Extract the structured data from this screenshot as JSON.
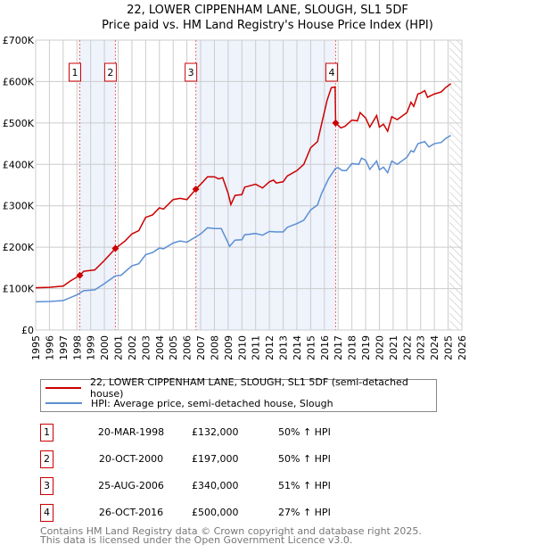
{
  "title": "22, LOWER CIPPENHAM LANE, SLOUGH, SL1 5DF",
  "subtitle": "Price paid vs. HM Land Registry's House Price Index (HPI)",
  "colors": {
    "property": "#cc0000",
    "hpi": "#5b8fd4",
    "shade": "#eef3fc"
  },
  "legend": [
    "22, LOWER CIPPENHAM LANE, SLOUGH, SL1 5DF (semi-detached house)",
    "HPI: Average price, semi-detached house, Slough"
  ],
  "sales": [
    {
      "num": "1",
      "date": "20-MAR-1998",
      "price": "£132,000",
      "hpi": "50% ↑ HPI"
    },
    {
      "num": "2",
      "date": "20-OCT-2000",
      "price": "£197,000",
      "hpi": "50% ↑ HPI"
    },
    {
      "num": "3",
      "date": "25-AUG-2006",
      "price": "£340,000",
      "hpi": "51% ↑ HPI"
    },
    {
      "num": "4",
      "date": "26-OCT-2016",
      "price": "£500,000",
      "hpi": "27% ↑ HPI"
    }
  ],
  "footer": [
    "Contains HM Land Registry data © Crown copyright and database right 2025.",
    "This data is licensed under the Open Government Licence v3.0."
  ],
  "chart_data": {
    "type": "line",
    "xlim": [
      1995,
      2026
    ],
    "ylim": [
      0,
      700000
    ],
    "x_ticks": [
      "1995",
      "1996",
      "1997",
      "1998",
      "1999",
      "2000",
      "2001",
      "2002",
      "2003",
      "2004",
      "2005",
      "2006",
      "2007",
      "2008",
      "2009",
      "2010",
      "2011",
      "2012",
      "2013",
      "2014",
      "2015",
      "2016",
      "2017",
      "2018",
      "2019",
      "2020",
      "2021",
      "2022",
      "2023",
      "2024",
      "2025",
      "2026"
    ],
    "y_ticks": [
      {
        "v": 0,
        "label": "£0"
      },
      {
        "v": 100000,
        "label": "£100K"
      },
      {
        "v": 200000,
        "label": "£200K"
      },
      {
        "v": 300000,
        "label": "£300K"
      },
      {
        "v": 400000,
        "label": "£400K"
      },
      {
        "v": 500000,
        "label": "£500K"
      },
      {
        "v": 600000,
        "label": "£600K"
      },
      {
        "v": 700000,
        "label": "£700K"
      }
    ],
    "grid": true,
    "forecast_hatch_from": 2025.1,
    "sale_points": [
      {
        "label": "1",
        "x": 1998.21,
        "y": 132000
      },
      {
        "label": "2",
        "x": 2000.8,
        "y": 197000
      },
      {
        "label": "3",
        "x": 2006.65,
        "y": 340000
      },
      {
        "label": "4",
        "x": 2016.82,
        "y": 500000
      }
    ],
    "shaded_ranges": [
      [
        1998.21,
        2000.8
      ],
      [
        2006.65,
        2016.82
      ]
    ],
    "series": [
      {
        "name": "property",
        "x": [
          1995,
          1996,
          1997,
          1997.5,
          1998.21,
          1998.5,
          1999.3,
          2000,
          2000.8,
          2001.5,
          2002,
          2002.5,
          2003,
          2003.5,
          2004,
          2004.3,
          2005,
          2005.5,
          2006,
          2006.65,
          2007,
          2007.5,
          2008,
          2008.3,
          2008.6,
          2009,
          2009.2,
          2009.5,
          2010,
          2010.2,
          2011,
          2011.5,
          2012,
          2012.3,
          2012.5,
          2013,
          2013.3,
          2014,
          2014.5,
          2015,
          2015.5,
          2015.8,
          2016.2,
          2016.5,
          2016.78,
          2016.82,
          2017.2,
          2017.5,
          2018,
          2018.4,
          2018.6,
          2019,
          2019.3,
          2019.8,
          2020,
          2020.3,
          2020.6,
          2020.9,
          2021.3,
          2022,
          2022.3,
          2022.5,
          2022.8,
          2023,
          2023.3,
          2023.5,
          2024,
          2024.5,
          2024.8,
          2025.2
        ],
        "y": [
          102000,
          103000,
          106000,
          118000,
          132000,
          142000,
          145000,
          168000,
          197000,
          215000,
          232000,
          240000,
          272000,
          278000,
          295000,
          292000,
          315000,
          318000,
          315000,
          340000,
          352000,
          370000,
          370000,
          365000,
          368000,
          330000,
          303000,
          325000,
          327000,
          345000,
          352000,
          343000,
          358000,
          362000,
          355000,
          358000,
          372000,
          385000,
          400000,
          440000,
          455000,
          498000,
          555000,
          585000,
          587000,
          500000,
          488000,
          492000,
          507000,
          505000,
          525000,
          512000,
          490000,
          518000,
          490000,
          497000,
          480000,
          515000,
          508000,
          525000,
          550000,
          540000,
          570000,
          572000,
          578000,
          562000,
          570000,
          575000,
          585000,
          595000
        ]
      },
      {
        "name": "hpi",
        "x": [
          1995,
          1996,
          1997,
          1998,
          1998.5,
          1999.3,
          2000,
          2000.8,
          2001.2,
          2002,
          2002.5,
          2003,
          2003.5,
          2004,
          2004.3,
          2005,
          2005.5,
          2006,
          2006.65,
          2007,
          2007.5,
          2008,
          2008.5,
          2009,
          2009.1,
          2009.5,
          2010,
          2010.2,
          2011,
          2011.5,
          2012,
          2012.5,
          2013,
          2013.3,
          2014,
          2014.5,
          2015,
          2015.5,
          2015.8,
          2016.3,
          2016.8,
          2017,
          2017.3,
          2017.6,
          2018,
          2018.5,
          2018.7,
          2019,
          2019.3,
          2019.8,
          2020,
          2020.3,
          2020.6,
          2020.9,
          2021.3,
          2022,
          2022.3,
          2022.5,
          2022.8,
          2023,
          2023.3,
          2023.6,
          2024,
          2024.5,
          2024.8,
          2025.2
        ],
        "y": [
          68000,
          69000,
          71000,
          85000,
          95000,
          97000,
          112000,
          131000,
          132000,
          155000,
          160000,
          182000,
          187000,
          198000,
          196000,
          210000,
          215000,
          212000,
          225000,
          232000,
          247000,
          245000,
          245000,
          210000,
          202000,
          217000,
          218000,
          230000,
          233000,
          229000,
          238000,
          237000,
          237000,
          248000,
          257000,
          265000,
          290000,
          302000,
          330000,
          365000,
          390000,
          392000,
          385000,
          385000,
          402000,
          400000,
          415000,
          410000,
          388000,
          408000,
          387000,
          393000,
          380000,
          408000,
          400000,
          417000,
          433000,
          430000,
          450000,
          452000,
          455000,
          442000,
          450000,
          453000,
          462000,
          470000
        ]
      }
    ]
  }
}
